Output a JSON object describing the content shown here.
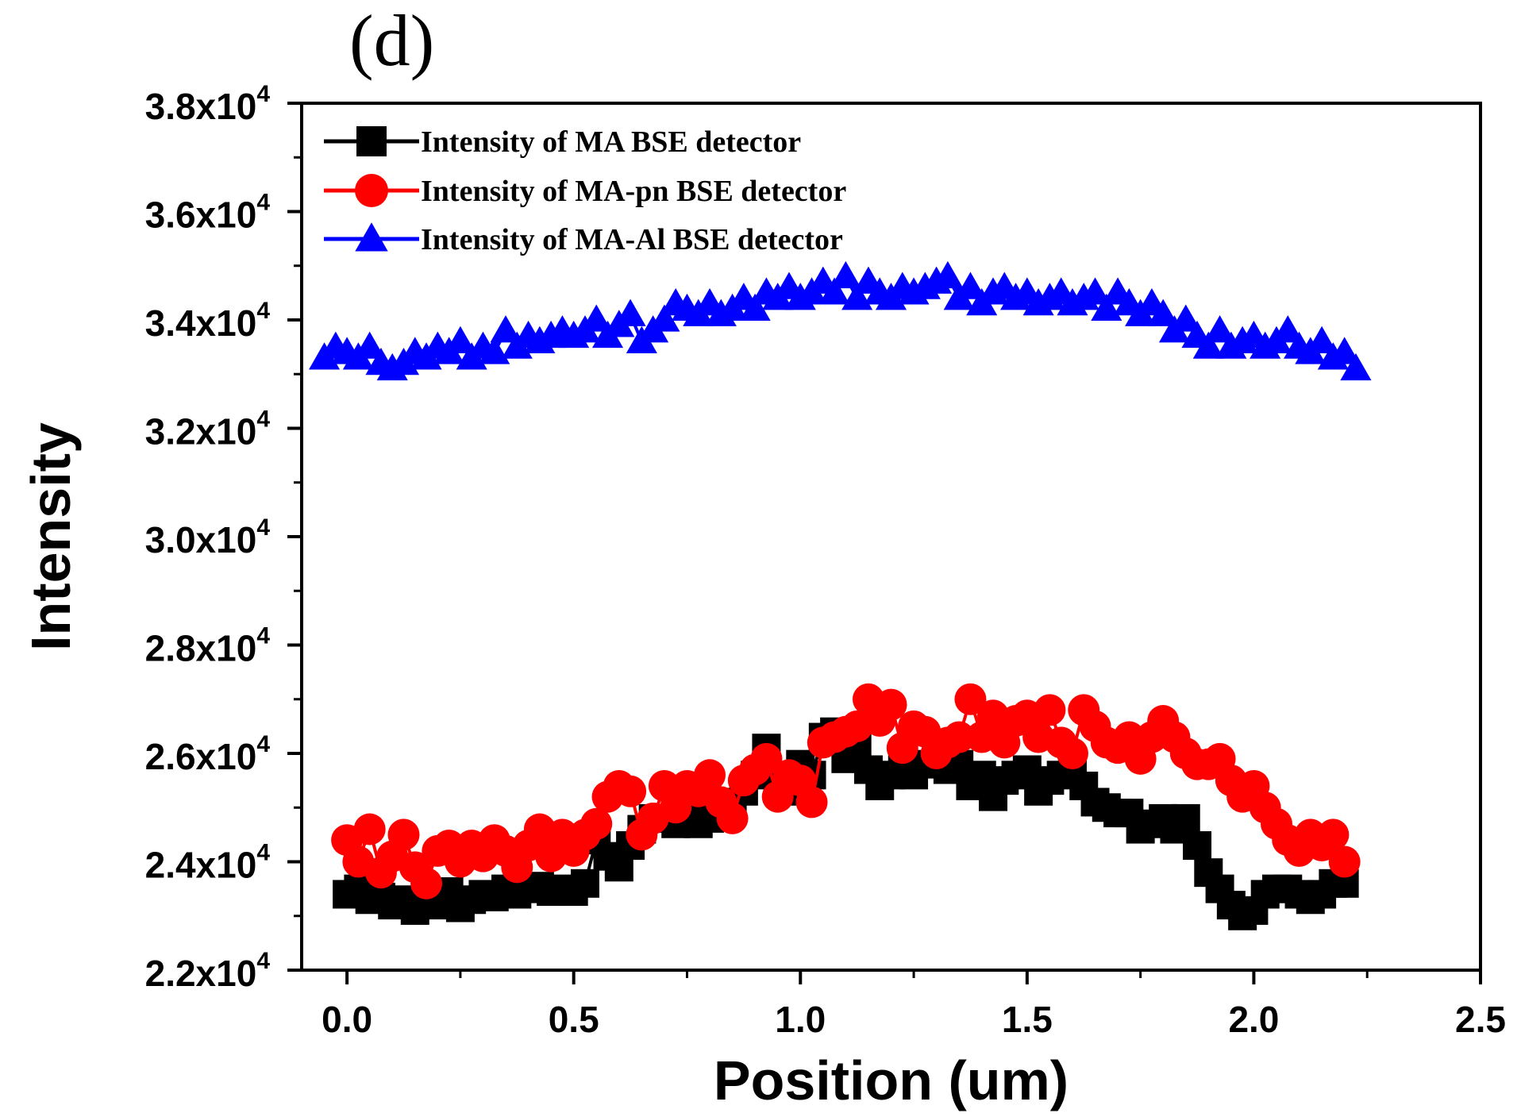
{
  "panel_label": "(d)",
  "chart_data": {
    "type": "scatter",
    "xlabel": "Position (um)",
    "ylabel": "Intensity",
    "xlim": [
      -0.1,
      2.5
    ],
    "ylim": [
      22000,
      38000
    ],
    "x_ticks": [
      0.0,
      0.5,
      1.0,
      1.5,
      2.0,
      2.5
    ],
    "x_tick_labels": [
      "0.0",
      "0.5",
      "1.0",
      "1.5",
      "2.0",
      "2.5"
    ],
    "y_ticks": [
      22000,
      24000,
      26000,
      28000,
      30000,
      32000,
      34000,
      36000,
      38000
    ],
    "y_tick_labels": [
      {
        "mantissa": "2.2x10",
        "exponent": "4"
      },
      {
        "mantissa": "2.4x10",
        "exponent": "4"
      },
      {
        "mantissa": "2.6x10",
        "exponent": "4"
      },
      {
        "mantissa": "2.8x10",
        "exponent": "4"
      },
      {
        "mantissa": "3.0x10",
        "exponent": "4"
      },
      {
        "mantissa": "3.2x10",
        "exponent": "4"
      },
      {
        "mantissa": "3.4x10",
        "exponent": "4"
      },
      {
        "mantissa": "3.6x10",
        "exponent": "4"
      },
      {
        "mantissa": "3.8x10",
        "exponent": "4"
      }
    ],
    "grid": false,
    "legend_position": "top-left",
    "series": [
      {
        "name": "Intensity of MA BSE detector",
        "color": "#000000",
        "marker": "square",
        "x": [
          0.0,
          0.025,
          0.05,
          0.075,
          0.1,
          0.125,
          0.15,
          0.175,
          0.2,
          0.225,
          0.25,
          0.275,
          0.3,
          0.325,
          0.35,
          0.375,
          0.4,
          0.425,
          0.45,
          0.475,
          0.5,
          0.525,
          0.55,
          0.575,
          0.6,
          0.625,
          0.65,
          0.675,
          0.7,
          0.725,
          0.75,
          0.775,
          0.8,
          0.825,
          0.85,
          0.875,
          0.9,
          0.925,
          0.95,
          0.975,
          1.0,
          1.025,
          1.05,
          1.075,
          1.1,
          1.125,
          1.15,
          1.175,
          1.2,
          1.225,
          1.25,
          1.275,
          1.3,
          1.325,
          1.35,
          1.375,
          1.4,
          1.425,
          1.45,
          1.475,
          1.5,
          1.525,
          1.55,
          1.575,
          1.6,
          1.625,
          1.65,
          1.675,
          1.7,
          1.725,
          1.75,
          1.775,
          1.8,
          1.825,
          1.85,
          1.875,
          1.9,
          1.925,
          1.95,
          1.975,
          2.0,
          2.025,
          2.05,
          2.075,
          2.1,
          2.125,
          2.15,
          2.175,
          2.2
        ],
        "y": [
          23400,
          23500,
          23300,
          23350,
          23200,
          23300,
          23100,
          23400,
          23200,
          23450,
          23150,
          23300,
          23400,
          23350,
          23500,
          23400,
          23500,
          23550,
          23450,
          23500,
          23450,
          23600,
          24400,
          24100,
          23900,
          24300,
          24600,
          24800,
          24800,
          24700,
          24850,
          24700,
          24800,
          24900,
          25100,
          25300,
          25600,
          26100,
          25500,
          25300,
          25800,
          25600,
          26300,
          26400,
          25900,
          26100,
          25700,
          25400,
          25600,
          25700,
          25600,
          25800,
          25900,
          25700,
          25800,
          25400,
          25600,
          25200,
          25500,
          25600,
          25700,
          25300,
          25500,
          25600,
          25700,
          25400,
          25100,
          25000,
          24900,
          24900,
          24600,
          24700,
          24800,
          24600,
          24800,
          24300,
          23800,
          23500,
          23200,
          23000,
          23100,
          23400,
          23500,
          23500,
          23400,
          23300,
          23400,
          23600,
          23600
        ]
      },
      {
        "name": "Intensity of MA-pn BSE detector",
        "color": "#ff0000",
        "marker": "circle",
        "x": [
          0.0,
          0.025,
          0.05,
          0.075,
          0.1,
          0.125,
          0.15,
          0.175,
          0.2,
          0.225,
          0.25,
          0.275,
          0.3,
          0.325,
          0.35,
          0.375,
          0.4,
          0.425,
          0.45,
          0.475,
          0.5,
          0.525,
          0.55,
          0.575,
          0.6,
          0.625,
          0.65,
          0.675,
          0.7,
          0.725,
          0.75,
          0.775,
          0.8,
          0.825,
          0.85,
          0.875,
          0.9,
          0.925,
          0.95,
          0.975,
          1.0,
          1.025,
          1.05,
          1.075,
          1.1,
          1.125,
          1.15,
          1.175,
          1.2,
          1.225,
          1.25,
          1.275,
          1.3,
          1.325,
          1.35,
          1.375,
          1.4,
          1.425,
          1.45,
          1.475,
          1.5,
          1.525,
          1.55,
          1.575,
          1.6,
          1.625,
          1.65,
          1.675,
          1.7,
          1.725,
          1.75,
          1.775,
          1.8,
          1.825,
          1.85,
          1.875,
          1.9,
          1.925,
          1.95,
          1.975,
          2.0,
          2.025,
          2.05,
          2.075,
          2.1,
          2.125,
          2.15,
          2.175,
          2.2
        ],
        "y": [
          24400,
          24000,
          24600,
          23800,
          24100,
          24500,
          23900,
          23600,
          24200,
          24300,
          24000,
          24300,
          24100,
          24400,
          24200,
          23900,
          24300,
          24600,
          24100,
          24500,
          24200,
          24500,
          24700,
          25200,
          25400,
          25300,
          24500,
          24800,
          25400,
          25000,
          25400,
          25300,
          25600,
          25100,
          24800,
          25500,
          25700,
          25900,
          25200,
          25600,
          25500,
          25100,
          26200,
          26300,
          26400,
          26500,
          27000,
          26600,
          26900,
          26100,
          26500,
          26400,
          26000,
          26200,
          26300,
          27000,
          26300,
          26700,
          26200,
          26600,
          26700,
          26300,
          26800,
          26200,
          26000,
          26800,
          26500,
          26200,
          26100,
          26300,
          25900,
          26300,
          26600,
          26300,
          26000,
          25800,
          25800,
          25900,
          25500,
          25200,
          25400,
          25000,
          24700,
          24400,
          24200,
          24500,
          24300,
          24500,
          24000
        ]
      },
      {
        "name": "Intensity of MA-Al BSE detector",
        "color": "#0000ff",
        "marker": "triangle",
        "x": [
          -0.05,
          -0.025,
          0.0,
          0.025,
          0.05,
          0.075,
          0.1,
          0.125,
          0.15,
          0.175,
          0.2,
          0.225,
          0.25,
          0.275,
          0.3,
          0.325,
          0.35,
          0.375,
          0.4,
          0.425,
          0.45,
          0.475,
          0.5,
          0.525,
          0.55,
          0.575,
          0.6,
          0.625,
          0.65,
          0.675,
          0.7,
          0.725,
          0.75,
          0.775,
          0.8,
          0.825,
          0.85,
          0.875,
          0.9,
          0.925,
          0.95,
          0.975,
          1.0,
          1.025,
          1.05,
          1.075,
          1.1,
          1.125,
          1.15,
          1.175,
          1.2,
          1.225,
          1.25,
          1.275,
          1.3,
          1.325,
          1.35,
          1.375,
          1.4,
          1.425,
          1.45,
          1.475,
          1.5,
          1.525,
          1.55,
          1.575,
          1.6,
          1.625,
          1.65,
          1.675,
          1.7,
          1.725,
          1.75,
          1.775,
          1.8,
          1.825,
          1.85,
          1.875,
          1.9,
          1.925,
          1.95,
          1.975,
          2.0,
          2.025,
          2.05,
          2.075,
          2.1,
          2.125,
          2.15,
          2.175,
          2.2,
          2.225
        ],
        "y": [
          33300,
          33500,
          33400,
          33300,
          33500,
          33200,
          33100,
          33200,
          33400,
          33300,
          33500,
          33400,
          33600,
          33300,
          33500,
          33400,
          33800,
          33500,
          33700,
          33600,
          33700,
          33800,
          33700,
          33800,
          34000,
          33700,
          33900,
          34100,
          33600,
          33800,
          34000,
          34300,
          34200,
          34100,
          34300,
          34100,
          34200,
          34400,
          34200,
          34500,
          34400,
          34600,
          34400,
          34500,
          34700,
          34500,
          34800,
          34400,
          34700,
          34500,
          34400,
          34600,
          34500,
          34600,
          34700,
          34800,
          34400,
          34600,
          34300,
          34500,
          34600,
          34400,
          34500,
          34300,
          34400,
          34500,
          34300,
          34400,
          34500,
          34200,
          34500,
          34300,
          34100,
          34300,
          34100,
          33800,
          34000,
          33700,
          33500,
          33800,
          33500,
          33600,
          33700,
          33500,
          33600,
          33800,
          33500,
          33400,
          33600,
          33300,
          33400,
          33100
        ]
      }
    ]
  }
}
